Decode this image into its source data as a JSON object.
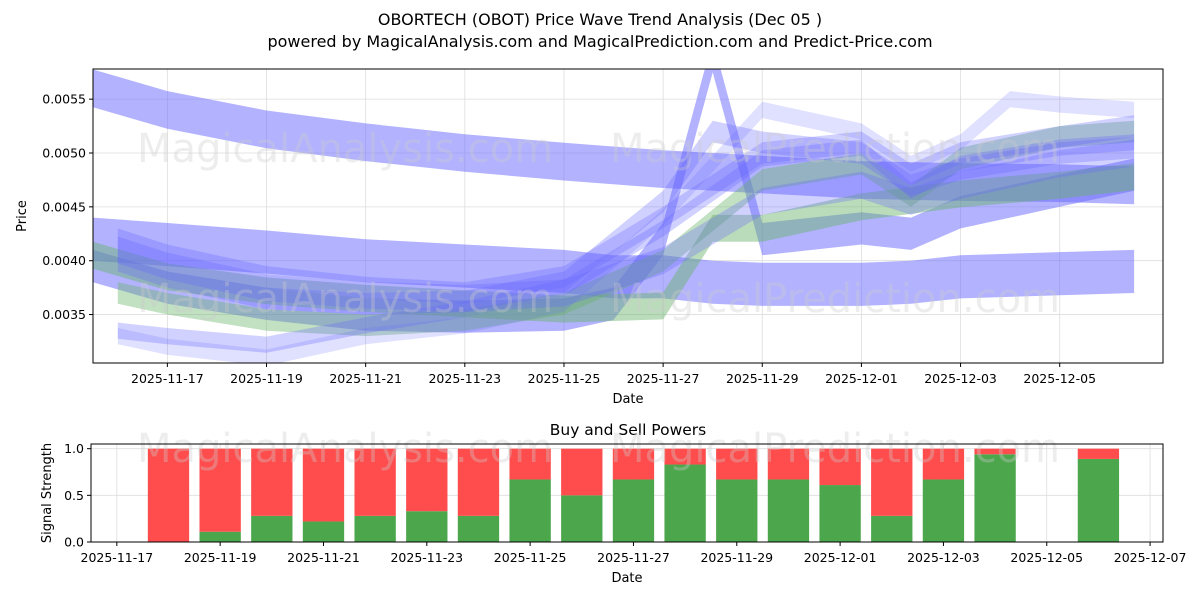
{
  "title_line1": "OBORTECH (OBOT) Price Wave Trend Analysis (Dec 05 )",
  "title_line2": "powered by MagicalAnalysis.com and MagicalPrediction.com and Predict-Price.com",
  "watermarks": [
    "MagicalAnalysis.com",
    "MagicalPrediction.com"
  ],
  "colors": {
    "blue": "#6666ff",
    "green": "#66b266",
    "buy": "#4ca64c",
    "sell": "#ff4c4c",
    "grid": "#dddddd"
  },
  "chart_data": [
    {
      "type": "area",
      "name": "price-wave-chart",
      "xlabel": "Date",
      "ylabel": "Price",
      "x_range": [
        "2025-11-15 12:00",
        "2025-12-07 02:00"
      ],
      "ylim": [
        0.00305,
        0.00578
      ],
      "x_ticks": [
        "2025-11-17",
        "2025-11-19",
        "2025-11-21",
        "2025-11-23",
        "2025-11-25",
        "2025-11-27",
        "2025-11-29",
        "2025-12-01",
        "2025-12-03",
        "2025-12-05"
      ],
      "y_ticks": [
        0.0035,
        0.004,
        0.0045,
        0.005,
        0.0055
      ],
      "y_tick_labels": [
        "0.0035",
        "0.0040",
        "0.0045",
        "0.0050",
        "0.0055"
      ],
      "series": [
        {
          "name": "wave-long-high",
          "color": "blue",
          "width": 0.00035,
          "opacity": 0.5,
          "x": [
            "2025-11-15 12:00",
            "2025-11-17",
            "2025-11-19",
            "2025-11-21",
            "2025-11-23",
            "2025-11-25",
            "2025-11-27",
            "2025-11-29",
            "2025-12-01",
            "2025-12-03",
            "2025-12-05",
            "2025-12-06 12:00"
          ],
          "y": [
            0.0056,
            0.0054,
            0.00522,
            0.0051,
            0.005,
            0.00492,
            0.00485,
            0.0048,
            0.00475,
            0.00473,
            0.00472,
            0.0047
          ]
        },
        {
          "name": "wave-spike",
          "color": "blue",
          "width": 0.0003,
          "opacity": 0.5,
          "x": [
            "2025-11-15 12:00",
            "2025-11-17",
            "2025-11-19",
            "2025-11-21",
            "2025-11-23",
            "2025-11-25",
            "2025-11-26",
            "2025-11-27",
            "2025-11-28",
            "2025-11-29",
            "2025-12-01",
            "2025-12-02",
            "2025-12-03",
            "2025-12-05",
            "2025-12-06 12:00"
          ],
          "y": [
            0.00395,
            0.00375,
            0.0036,
            0.0035,
            0.00348,
            0.0035,
            0.0036,
            0.0042,
            0.0059,
            0.0042,
            0.0043,
            0.00425,
            0.00445,
            0.00465,
            0.0048
          ]
        },
        {
          "name": "wave-low-long",
          "color": "blue",
          "width": 0.0004,
          "opacity": 0.5,
          "x": [
            "2025-11-15 12:00",
            "2025-11-17",
            "2025-11-19",
            "2025-11-21",
            "2025-11-23",
            "2025-11-25",
            "2025-11-26",
            "2025-11-27",
            "2025-11-28",
            "2025-11-29",
            "2025-12-01",
            "2025-12-02",
            "2025-12-03",
            "2025-12-05",
            "2025-12-06 12:00"
          ],
          "y": [
            0.0042,
            0.00415,
            0.00408,
            0.004,
            0.00395,
            0.0039,
            0.00385,
            0.00385,
            0.0038,
            0.00378,
            0.00378,
            0.0038,
            0.00385,
            0.00388,
            0.0039
          ]
        },
        {
          "name": "wave-green-a",
          "color": "green",
          "width": 0.00025,
          "opacity": 0.45,
          "x": [
            "2025-11-15 12:00",
            "2025-11-17",
            "2025-11-19",
            "2025-11-21",
            "2025-11-23",
            "2025-11-25",
            "2025-11-27",
            "2025-11-28",
            "2025-11-29",
            "2025-12-01",
            "2025-12-03",
            "2025-12-05",
            "2025-12-06 12:00"
          ],
          "y": [
            0.00405,
            0.00385,
            0.00372,
            0.00365,
            0.0036,
            0.00355,
            0.00358,
            0.0043,
            0.0043,
            0.0045,
            0.00462,
            0.0047,
            0.00478
          ]
        },
        {
          "name": "wave-green-b",
          "color": "green",
          "width": 0.0002,
          "opacity": 0.4,
          "x": [
            "2025-11-16",
            "2025-11-17",
            "2025-11-19",
            "2025-11-21",
            "2025-11-23",
            "2025-11-25",
            "2025-11-27",
            "2025-11-29",
            "2025-12-01",
            "2025-12-02",
            "2025-12-03",
            "2025-12-05",
            "2025-12-06 12:00"
          ],
          "y": [
            0.0037,
            0.0036,
            0.00345,
            0.0034,
            0.00345,
            0.0036,
            0.004,
            0.00475,
            0.0049,
            0.0046,
            0.00495,
            0.00515,
            0.0052
          ]
        },
        {
          "name": "wave-mid-a",
          "color": "blue",
          "width": 0.0002,
          "opacity": 0.3,
          "x": [
            "2025-11-16",
            "2025-11-17",
            "2025-11-19",
            "2025-11-21",
            "2025-11-23",
            "2025-11-25",
            "2025-11-27",
            "2025-11-29",
            "2025-12-01",
            "2025-12-02",
            "2025-12-03",
            "2025-12-05",
            "2025-12-06 12:00"
          ],
          "y": [
            0.0042,
            0.00405,
            0.00385,
            0.00375,
            0.0037,
            0.00385,
            0.0044,
            0.005,
            0.0051,
            0.0048,
            0.005,
            0.00515,
            0.00525
          ]
        },
        {
          "name": "wave-mid-b",
          "color": "blue",
          "width": 0.0002,
          "opacity": 0.3,
          "x": [
            "2025-11-16",
            "2025-11-17",
            "2025-11-19",
            "2025-11-21",
            "2025-11-23",
            "2025-11-25",
            "2025-11-27",
            "2025-11-28",
            "2025-11-29",
            "2025-12-01",
            "2025-12-02",
            "2025-12-03",
            "2025-12-05",
            "2025-12-06 12:00"
          ],
          "y": [
            0.004,
            0.00385,
            0.00365,
            0.0036,
            0.00362,
            0.0038,
            0.00455,
            0.0052,
            0.0051,
            0.005,
            0.0047,
            0.00485,
            0.005,
            0.00505
          ]
        },
        {
          "name": "wave-low-c",
          "color": "blue",
          "width": 0.00015,
          "opacity": 0.3,
          "x": [
            "2025-11-16",
            "2025-11-17",
            "2025-11-19",
            "2025-11-21",
            "2025-11-23",
            "2025-11-25",
            "2025-11-27",
            "2025-11-29",
            "2025-12-01",
            "2025-12-02",
            "2025-12-03",
            "2025-12-05",
            "2025-12-06 12:00"
          ],
          "y": [
            0.00335,
            0.0033,
            0.00322,
            0.0034,
            0.00355,
            0.00375,
            0.0043,
            0.00495,
            0.00505,
            0.00465,
            0.0049,
            0.00505,
            0.0051
          ]
        },
        {
          "name": "wave-pale",
          "color": "blue",
          "width": 0.00015,
          "opacity": 0.2,
          "x": [
            "2025-11-16",
            "2025-11-17",
            "2025-11-19",
            "2025-11-21",
            "2025-11-23",
            "2025-11-25",
            "2025-11-27",
            "2025-11-29",
            "2025-12-01",
            "2025-12-02",
            "2025-12-03",
            "2025-12-04",
            "2025-12-05",
            "2025-12-06 12:00"
          ],
          "y": [
            0.0033,
            0.0032,
            0.0031,
            0.0033,
            0.0034,
            0.0036,
            0.0044,
            0.0054,
            0.0052,
            0.0049,
            0.0051,
            0.0055,
            0.00545,
            0.0054
          ]
        },
        {
          "name": "wave-mid-c",
          "color": "blue",
          "width": 0.00025,
          "opacity": 0.3,
          "x": [
            "2025-11-16",
            "2025-11-17",
            "2025-11-19",
            "2025-11-21",
            "2025-11-23",
            "2025-11-25",
            "2025-11-27",
            "2025-11-29",
            "2025-12-01",
            "2025-12-02",
            "2025-12-03",
            "2025-12-05",
            "2025-12-06 12:00"
          ],
          "y": [
            0.0041,
            0.00395,
            0.00375,
            0.00368,
            0.00365,
            0.0037,
            0.004,
            0.00455,
            0.0047,
            0.00455,
            0.0047,
            0.0049,
            0.005
          ]
        }
      ]
    },
    {
      "type": "bar",
      "name": "buy-sell-powers",
      "title": "Buy and Sell Powers",
      "xlabel": "Date",
      "ylabel": "Signal Strength",
      "x_range": [
        "2025-11-16 12:00",
        "2025-12-07 06:00"
      ],
      "ylim": [
        0,
        1.05
      ],
      "y_ticks": [
        0.0,
        0.5,
        1.0
      ],
      "y_tick_labels": [
        "0.0",
        "0.5",
        "1.0"
      ],
      "x_ticks": [
        "2025-11-17",
        "2025-11-19",
        "2025-11-21",
        "2025-11-23",
        "2025-11-25",
        "2025-11-27",
        "2025-11-29",
        "2025-12-01",
        "2025-12-03",
        "2025-12-05",
        "2025-12-07"
      ],
      "dates": [
        "2025-11-18",
        "2025-11-19",
        "2025-11-20",
        "2025-11-21",
        "2025-11-22",
        "2025-11-23",
        "2025-11-24",
        "2025-11-25",
        "2025-11-26",
        "2025-11-27",
        "2025-11-28",
        "2025-11-29",
        "2025-11-30",
        "2025-12-01",
        "2025-12-02",
        "2025-12-03",
        "2025-12-04",
        "2025-12-06"
      ],
      "series": [
        {
          "name": "Buy",
          "color": "buy",
          "values": [
            0.0,
            0.11,
            0.28,
            0.22,
            0.28,
            0.33,
            0.28,
            0.67,
            0.5,
            0.67,
            0.83,
            0.67,
            0.67,
            0.61,
            0.28,
            0.67,
            0.94,
            0.89
          ]
        },
        {
          "name": "Sell",
          "color": "sell",
          "values": [
            1.0,
            0.89,
            0.72,
            0.78,
            0.72,
            0.67,
            0.72,
            0.33,
            0.5,
            0.33,
            0.17,
            0.33,
            0.33,
            0.39,
            0.72,
            0.33,
            0.06,
            0.11
          ]
        }
      ]
    }
  ]
}
